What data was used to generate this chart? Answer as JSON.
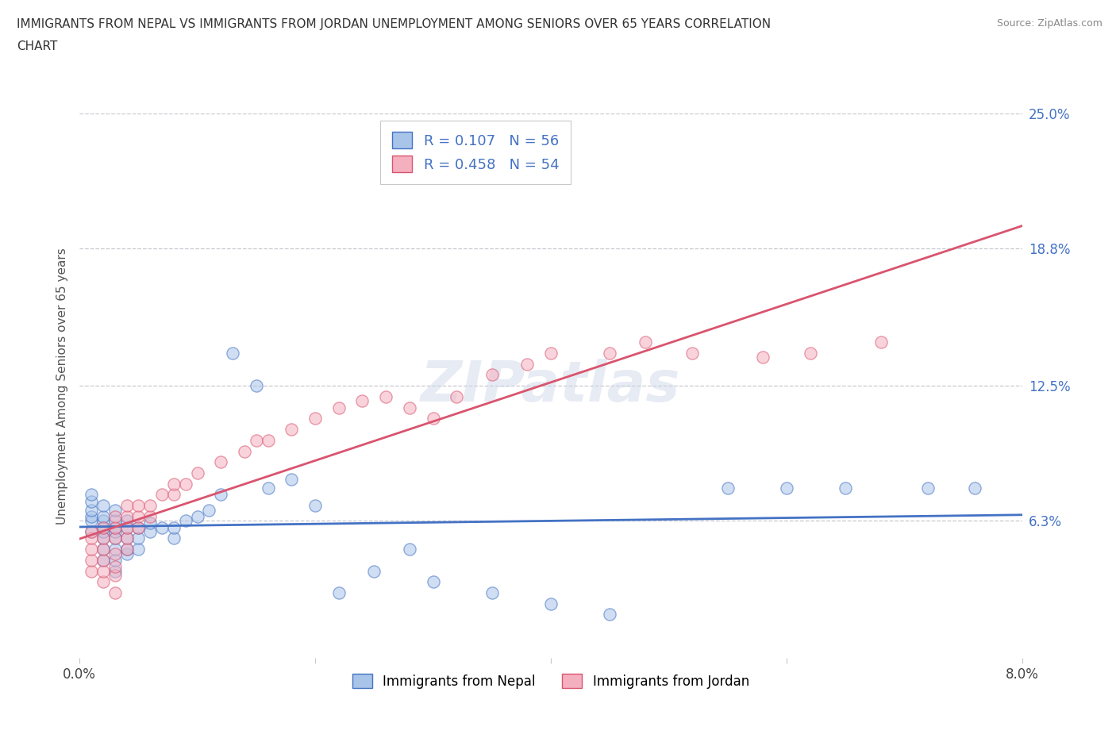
{
  "title": "IMMIGRANTS FROM NEPAL VS IMMIGRANTS FROM JORDAN UNEMPLOYMENT AMONG SENIORS OVER 65 YEARS CORRELATION\nCHART",
  "source": "Source: ZipAtlas.com",
  "ylabel": "Unemployment Among Seniors over 65 years",
  "xlim": [
    0.0,
    0.08
  ],
  "ylim": [
    0.0,
    0.25
  ],
  "ytick_labels_right": [
    "6.3%",
    "12.5%",
    "18.8%",
    "25.0%"
  ],
  "yticks_right": [
    0.063,
    0.125,
    0.188,
    0.25
  ],
  "nepal_R": 0.107,
  "nepal_N": 56,
  "jordan_R": 0.458,
  "jordan_N": 54,
  "nepal_color": "#a8c4e8",
  "jordan_color": "#f5b0c0",
  "nepal_line_color": "#4472c4",
  "jordan_line_color": "#d9546e",
  "background_color": "#ffffff",
  "grid_color": "#c8c8d0",
  "watermark": "ZIPatlas",
  "nepal_x": [
    0.001,
    0.001,
    0.001,
    0.001,
    0.001,
    0.001,
    0.002,
    0.002,
    0.002,
    0.002,
    0.002,
    0.002,
    0.002,
    0.002,
    0.003,
    0.003,
    0.003,
    0.003,
    0.003,
    0.003,
    0.003,
    0.003,
    0.004,
    0.004,
    0.004,
    0.004,
    0.004,
    0.005,
    0.005,
    0.005,
    0.006,
    0.006,
    0.007,
    0.008,
    0.008,
    0.009,
    0.01,
    0.011,
    0.012,
    0.013,
    0.015,
    0.016,
    0.018,
    0.02,
    0.022,
    0.025,
    0.028,
    0.03,
    0.035,
    0.04,
    0.045,
    0.055,
    0.06,
    0.065,
    0.072,
    0.076
  ],
  "nepal_y": [
    0.058,
    0.063,
    0.065,
    0.068,
    0.072,
    0.075,
    0.045,
    0.05,
    0.055,
    0.058,
    0.06,
    0.063,
    0.065,
    0.07,
    0.04,
    0.045,
    0.05,
    0.055,
    0.058,
    0.06,
    0.063,
    0.068,
    0.048,
    0.05,
    0.055,
    0.06,
    0.063,
    0.05,
    0.055,
    0.06,
    0.058,
    0.062,
    0.06,
    0.055,
    0.06,
    0.063,
    0.065,
    0.068,
    0.075,
    0.14,
    0.125,
    0.078,
    0.082,
    0.07,
    0.03,
    0.04,
    0.05,
    0.035,
    0.03,
    0.025,
    0.02,
    0.078,
    0.078,
    0.078,
    0.078,
    0.078
  ],
  "jordan_x": [
    0.001,
    0.001,
    0.001,
    0.001,
    0.001,
    0.002,
    0.002,
    0.002,
    0.002,
    0.002,
    0.002,
    0.003,
    0.003,
    0.003,
    0.003,
    0.003,
    0.003,
    0.003,
    0.004,
    0.004,
    0.004,
    0.004,
    0.004,
    0.005,
    0.005,
    0.005,
    0.006,
    0.006,
    0.007,
    0.008,
    0.008,
    0.009,
    0.01,
    0.012,
    0.014,
    0.015,
    0.016,
    0.018,
    0.02,
    0.022,
    0.024,
    0.026,
    0.028,
    0.03,
    0.032,
    0.035,
    0.038,
    0.04,
    0.045,
    0.048,
    0.052,
    0.058,
    0.062,
    0.068
  ],
  "jordan_y": [
    0.04,
    0.045,
    0.05,
    0.055,
    0.058,
    0.035,
    0.04,
    0.045,
    0.05,
    0.055,
    0.06,
    0.03,
    0.038,
    0.042,
    0.048,
    0.055,
    0.06,
    0.065,
    0.05,
    0.055,
    0.06,
    0.065,
    0.07,
    0.06,
    0.065,
    0.07,
    0.065,
    0.07,
    0.075,
    0.075,
    0.08,
    0.08,
    0.085,
    0.09,
    0.095,
    0.1,
    0.1,
    0.105,
    0.11,
    0.115,
    0.118,
    0.12,
    0.115,
    0.11,
    0.12,
    0.13,
    0.135,
    0.14,
    0.14,
    0.145,
    0.14,
    0.138,
    0.14,
    0.145
  ]
}
